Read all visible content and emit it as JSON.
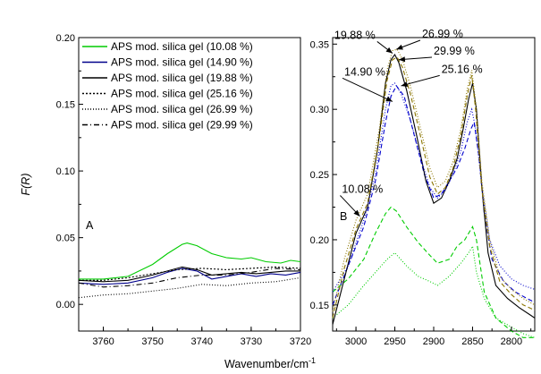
{
  "y_axis_label": "F(R)",
  "x_axis_label": "Wavenumber/cm",
  "x_axis_label_sup": "-1",
  "chart_data": [
    {
      "type": "line",
      "panel_label": "A",
      "xlim": [
        3765,
        3720
      ],
      "ylim": [
        -0.02,
        0.2
      ],
      "x_ticks": [
        3760,
        3750,
        3740,
        3730,
        3720
      ],
      "y_ticks": [
        "0.00",
        "0.05",
        "0.10",
        "0.15",
        "0.20"
      ],
      "legend_position": "top-right",
      "series": [
        {
          "name": "APS mod. silica gel (10.08 %)",
          "color": "#00cc00",
          "dash": "solid",
          "x": [
            3765,
            3760,
            3755,
            3750,
            3747,
            3744,
            3743,
            3741,
            3738,
            3735,
            3732,
            3730,
            3727,
            3724,
            3722,
            3720
          ],
          "y": [
            0.019,
            0.019,
            0.021,
            0.03,
            0.038,
            0.045,
            0.046,
            0.044,
            0.038,
            0.035,
            0.034,
            0.035,
            0.032,
            0.031,
            0.033,
            0.032
          ]
        },
        {
          "name": "APS mod. silica gel (14.90 %)",
          "color": "#00008b",
          "dash": "solid",
          "x": [
            3765,
            3760,
            3755,
            3750,
            3747,
            3744,
            3741,
            3738,
            3735,
            3732,
            3729,
            3726,
            3723,
            3720
          ],
          "y": [
            0.016,
            0.015,
            0.016,
            0.02,
            0.024,
            0.027,
            0.025,
            0.019,
            0.021,
            0.023,
            0.021,
            0.023,
            0.022,
            0.024
          ]
        },
        {
          "name": "APS mod. silica gel (19.88 %)",
          "color": "#000000",
          "dash": "solid",
          "x": [
            3765,
            3760,
            3755,
            3750,
            3747,
            3744,
            3741,
            3738,
            3735,
            3732,
            3729,
            3726,
            3723,
            3720
          ],
          "y": [
            0.018,
            0.017,
            0.018,
            0.022,
            0.025,
            0.028,
            0.026,
            0.022,
            0.023,
            0.024,
            0.023,
            0.024,
            0.025,
            0.025
          ]
        },
        {
          "name": "APS mod. silica gel (25.16 %)",
          "color": "#000000",
          "dash": "2,2",
          "x": [
            3765,
            3760,
            3755,
            3750,
            3745,
            3740,
            3735,
            3730,
            3725,
            3720
          ],
          "y": [
            0.018,
            0.018,
            0.02,
            0.023,
            0.026,
            0.027,
            0.026,
            0.027,
            0.028,
            0.027
          ]
        },
        {
          "name": "APS mod. silica gel (26.99 %)",
          "color": "#000000",
          "dash": "1,2",
          "x": [
            3765,
            3760,
            3755,
            3750,
            3745,
            3740,
            3735,
            3730,
            3725,
            3720
          ],
          "y": [
            0.005,
            0.007,
            0.008,
            0.01,
            0.012,
            0.015,
            0.014,
            0.016,
            0.017,
            0.02
          ]
        },
        {
          "name": "APS mod. silica gel (29.99 %)",
          "color": "#000000",
          "dash": "6,3,1,3",
          "x": [
            3765,
            3760,
            3755,
            3750,
            3745,
            3740,
            3735,
            3730,
            3725,
            3720
          ],
          "y": [
            0.016,
            0.013,
            0.014,
            0.016,
            0.02,
            0.022,
            0.022,
            0.024,
            0.027,
            0.026
          ]
        }
      ]
    },
    {
      "type": "line",
      "panel_label": "B",
      "xlim": [
        3030,
        2770
      ],
      "ylim": [
        0.13,
        0.355
      ],
      "x_ticks": [
        3000,
        2950,
        2900,
        2850,
        2800
      ],
      "y_ticks": [
        "0.15",
        "0.20",
        "0.25",
        "0.30",
        "0.35"
      ],
      "series": [
        {
          "name": "10.08 %",
          "color": "#00cc00",
          "dash": "5,3",
          "x": [
            3030,
            3010,
            2990,
            2975,
            2962,
            2955,
            2948,
            2935,
            2920,
            2905,
            2895,
            2880,
            2870,
            2860,
            2855,
            2850,
            2845,
            2835,
            2820,
            2800,
            2785,
            2770
          ],
          "y": [
            0.16,
            0.17,
            0.185,
            0.205,
            0.22,
            0.225,
            0.222,
            0.21,
            0.198,
            0.188,
            0.182,
            0.185,
            0.195,
            0.2,
            0.205,
            0.21,
            0.2,
            0.16,
            0.14,
            0.13,
            0.125,
            0.125
          ]
        },
        {
          "name": "10.08 % (dotted)",
          "color": "#00cc00",
          "dash": "1,2",
          "x": [
            3030,
            3010,
            2990,
            2975,
            2960,
            2950,
            2935,
            2920,
            2905,
            2895,
            2880,
            2865,
            2855,
            2850,
            2845,
            2835,
            2820,
            2800,
            2785,
            2770
          ],
          "y": [
            0.14,
            0.15,
            0.165,
            0.175,
            0.185,
            0.19,
            0.18,
            0.172,
            0.168,
            0.165,
            0.172,
            0.182,
            0.19,
            0.195,
            0.175,
            0.155,
            0.14,
            0.133,
            0.128,
            0.125
          ]
        },
        {
          "name": "14.90 %",
          "color": "#0000cc",
          "dash": "5,3",
          "x": [
            3030,
            3010,
            2990,
            2975,
            2962,
            2955,
            2948,
            2938,
            2925,
            2912,
            2900,
            2890,
            2880,
            2870,
            2860,
            2852,
            2848,
            2842,
            2835,
            2825,
            2810,
            2795,
            2780,
            2770
          ],
          "y": [
            0.15,
            0.18,
            0.21,
            0.245,
            0.29,
            0.31,
            0.318,
            0.31,
            0.28,
            0.25,
            0.232,
            0.235,
            0.245,
            0.255,
            0.27,
            0.285,
            0.29,
            0.265,
            0.22,
            0.185,
            0.168,
            0.16,
            0.155,
            0.152
          ]
        },
        {
          "name": "19.88 %",
          "color": "#000000",
          "dash": "solid",
          "x": [
            3030,
            3015,
            3000,
            2985,
            2972,
            2962,
            2955,
            2950,
            2945,
            2935,
            2922,
            2910,
            2900,
            2890,
            2880,
            2870,
            2862,
            2855,
            2850,
            2845,
            2838,
            2830,
            2820,
            2805,
            2790,
            2775,
            2770
          ],
          "y": [
            0.135,
            0.17,
            0.205,
            0.225,
            0.27,
            0.32,
            0.338,
            0.342,
            0.336,
            0.315,
            0.28,
            0.245,
            0.228,
            0.232,
            0.245,
            0.262,
            0.285,
            0.308,
            0.32,
            0.3,
            0.24,
            0.19,
            0.165,
            0.155,
            0.148,
            0.142,
            0.14
          ]
        },
        {
          "name": "25.16 %",
          "color": "#0000cc",
          "dash": "1,2",
          "x": [
            3030,
            3010,
            2990,
            2975,
            2962,
            2955,
            2950,
            2942,
            2930,
            2918,
            2905,
            2895,
            2885,
            2875,
            2865,
            2857,
            2851,
            2846,
            2838,
            2828,
            2815,
            2800,
            2785,
            2770
          ],
          "y": [
            0.16,
            0.18,
            0.215,
            0.25,
            0.3,
            0.318,
            0.32,
            0.312,
            0.292,
            0.265,
            0.24,
            0.232,
            0.238,
            0.25,
            0.268,
            0.29,
            0.3,
            0.285,
            0.24,
            0.2,
            0.18,
            0.17,
            0.165,
            0.162
          ]
        },
        {
          "name": "26.99 %",
          "color": "#8b7500",
          "dash": "1,2",
          "x": [
            3030,
            3015,
            3000,
            2985,
            2970,
            2960,
            2953,
            2947,
            2940,
            2930,
            2918,
            2905,
            2895,
            2885,
            2875,
            2865,
            2857,
            2851,
            2846,
            2838,
            2828,
            2815,
            2800,
            2785,
            2770
          ],
          "y": [
            0.145,
            0.185,
            0.215,
            0.235,
            0.285,
            0.33,
            0.345,
            0.346,
            0.338,
            0.318,
            0.288,
            0.255,
            0.24,
            0.245,
            0.26,
            0.285,
            0.315,
            0.33,
            0.305,
            0.245,
            0.2,
            0.172,
            0.162,
            0.155,
            0.15
          ]
        },
        {
          "name": "29.99 %",
          "color": "#8b7500",
          "dash": "5,3",
          "x": [
            3030,
            3015,
            3000,
            2985,
            2970,
            2960,
            2953,
            2947,
            2940,
            2930,
            2918,
            2905,
            2895,
            2885,
            2875,
            2865,
            2857,
            2851,
            2846,
            2838,
            2828,
            2815,
            2800,
            2785,
            2770
          ],
          "y": [
            0.14,
            0.178,
            0.208,
            0.228,
            0.278,
            0.322,
            0.338,
            0.34,
            0.332,
            0.312,
            0.282,
            0.248,
            0.235,
            0.24,
            0.255,
            0.28,
            0.31,
            0.326,
            0.3,
            0.238,
            0.195,
            0.168,
            0.158,
            0.15,
            0.146
          ]
        }
      ],
      "annotations": [
        {
          "text": "19.88 %",
          "x": 2975,
          "y": 0.354,
          "points_to": [
            2953,
            0.343
          ],
          "anchor": "end"
        },
        {
          "text": "26.99 %",
          "x": 2915,
          "y": 0.355,
          "points_to": [
            2948,
            0.346
          ],
          "anchor": "start"
        },
        {
          "text": "29.99 %",
          "x": 2900,
          "y": 0.342,
          "points_to": [
            2945,
            0.338
          ],
          "anchor": "start"
        },
        {
          "text": "25.16 %",
          "x": 2890,
          "y": 0.328,
          "points_to": [
            2942,
            0.318
          ],
          "anchor": "start"
        },
        {
          "text": "14.90 %",
          "x": 3015,
          "y": 0.326,
          "points_to": [
            2953,
            0.306
          ],
          "anchor": "start"
        },
        {
          "text": "10.08 %",
          "x": 3018,
          "y": 0.236,
          "points_to": [
            2995,
            0.218
          ],
          "anchor": "start"
        }
      ]
    }
  ]
}
